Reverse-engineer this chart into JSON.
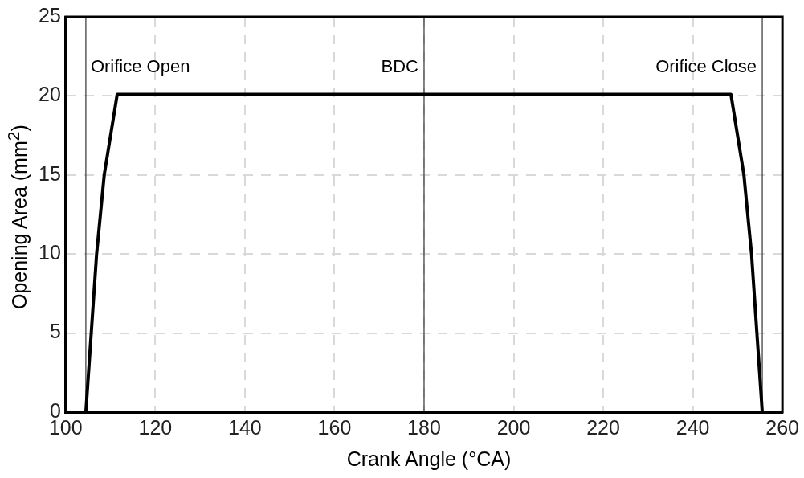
{
  "chart_data": {
    "type": "line",
    "xlabel": "Crank Angle (°CA)",
    "ylabel": "Opening Area (mm$^{2}$)",
    "x": [
      100,
      104.5,
      105.7,
      106.9,
      108.6,
      111.5,
      248.5,
      251.4,
      253.1,
      254.3,
      255.5,
      260
    ],
    "series": [
      {
        "color": "#000000",
        "values": [
          0,
          0,
          5,
          10,
          15,
          20.1,
          20.1,
          15,
          10,
          5,
          0,
          0
        ]
      }
    ],
    "xlim": [
      100,
      260
    ],
    "xticks": [
      100,
      120,
      140,
      160,
      180,
      200,
      220,
      240,
      260
    ],
    "ylim": [
      0,
      25
    ],
    "yticks": [
      0,
      5,
      10,
      15,
      20,
      25
    ],
    "ref_lines": [
      {
        "axis": "x",
        "value": 104.5,
        "label": "Orifice Open",
        "color": "#333333"
      },
      {
        "axis": "x",
        "value": 180,
        "label": "BDC",
        "color": "#333333"
      },
      {
        "axis": "x",
        "value": 255.5,
        "label": "Orifice Close",
        "color": "#333333"
      }
    ],
    "grid": true,
    "line_style": "solid",
    "marker": "none",
    "legend": false
  }
}
